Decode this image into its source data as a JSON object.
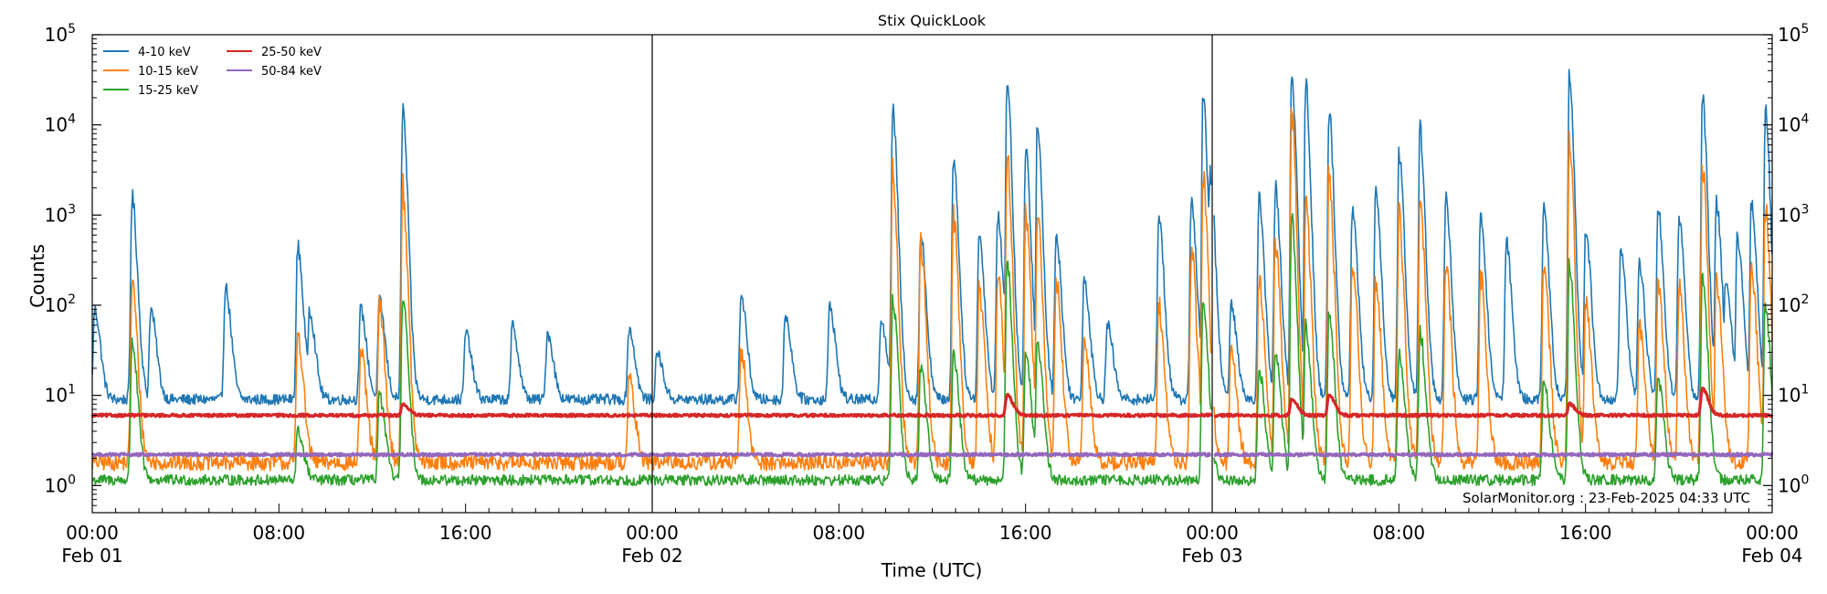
{
  "chart_data": {
    "type": "line",
    "title": "Stix QuickLook",
    "xlabel": "Time (UTC)",
    "ylabel": "Counts",
    "yscale": "log",
    "ylim": [
      0.5,
      100000
    ],
    "xlim_hours": [
      0,
      72
    ],
    "y_ticks": [
      {
        "value": 1,
        "label": "10",
        "exp": "0"
      },
      {
        "value": 10,
        "label": "10",
        "exp": "1"
      },
      {
        "value": 100,
        "label": "10",
        "exp": "2"
      },
      {
        "value": 1000,
        "label": "10",
        "exp": "3"
      },
      {
        "value": 10000,
        "label": "10",
        "exp": "4"
      },
      {
        "value": 100000,
        "label": "10",
        "exp": "5"
      }
    ],
    "x_ticks": [
      {
        "hour": 0,
        "time": "00:00",
        "date": "Feb 01"
      },
      {
        "hour": 8,
        "time": "08:00",
        "date": ""
      },
      {
        "hour": 16,
        "time": "16:00",
        "date": ""
      },
      {
        "hour": 24,
        "time": "00:00",
        "date": "Feb 02"
      },
      {
        "hour": 32,
        "time": "08:00",
        "date": ""
      },
      {
        "hour": 40,
        "time": "16:00",
        "date": ""
      },
      {
        "hour": 48,
        "time": "00:00",
        "date": "Feb 03"
      },
      {
        "hour": 56,
        "time": "08:00",
        "date": ""
      },
      {
        "hour": 64,
        "time": "16:00",
        "date": ""
      },
      {
        "hour": 72,
        "time": "00:00",
        "date": "Feb 04"
      }
    ],
    "day_boundaries_hours": [
      24,
      48
    ],
    "grid": false,
    "legend_position": "top-left",
    "legend_columns": 2,
    "series": [
      {
        "name": "4-10 keV",
        "color": "#1f77b4",
        "baseline": 9,
        "peaks": [
          [
            0.1,
            90
          ],
          [
            1.7,
            1600
          ],
          [
            2.5,
            90
          ],
          [
            5.7,
            160
          ],
          [
            8.8,
            450
          ],
          [
            9.3,
            90
          ],
          [
            11.5,
            90
          ],
          [
            12.3,
            110
          ],
          [
            13.3,
            15000
          ],
          [
            16.0,
            50
          ],
          [
            18.0,
            60
          ],
          [
            19.5,
            50
          ],
          [
            23.0,
            55
          ],
          [
            24.2,
            30
          ],
          [
            27.8,
            130
          ],
          [
            29.7,
            80
          ],
          [
            31.6,
            100
          ],
          [
            33.8,
            70
          ],
          [
            34.3,
            15000
          ],
          [
            35.5,
            600
          ],
          [
            36.9,
            4500
          ],
          [
            38.0,
            600
          ],
          [
            38.8,
            1000
          ],
          [
            39.2,
            35000
          ],
          [
            40.0,
            5000
          ],
          [
            40.5,
            9500
          ],
          [
            41.3,
            600
          ],
          [
            42.5,
            200
          ],
          [
            43.5,
            60
          ],
          [
            45.7,
            1000
          ],
          [
            47.1,
            1500
          ],
          [
            47.6,
            20000
          ],
          [
            47.9,
            3000
          ],
          [
            48.8,
            100
          ],
          [
            50.0,
            1500
          ],
          [
            50.7,
            2000
          ],
          [
            51.4,
            40000
          ],
          [
            52.0,
            30000
          ],
          [
            53.0,
            15000
          ],
          [
            54.0,
            1200
          ],
          [
            55.0,
            2000
          ],
          [
            56.0,
            5000
          ],
          [
            56.9,
            9000
          ],
          [
            58.0,
            1500
          ],
          [
            59.5,
            1000
          ],
          [
            60.6,
            500
          ],
          [
            62.2,
            1200
          ],
          [
            63.3,
            35000
          ],
          [
            64.0,
            700
          ],
          [
            65.5,
            400
          ],
          [
            66.3,
            300
          ],
          [
            67.1,
            1200
          ],
          [
            68.0,
            1000
          ],
          [
            69.0,
            22000
          ],
          [
            69.6,
            1400
          ],
          [
            70.0,
            200
          ],
          [
            70.5,
            600
          ],
          [
            71.1,
            1400
          ],
          [
            71.7,
            15000
          ]
        ]
      },
      {
        "name": "10-15 keV",
        "color": "#ff7f0e",
        "baseline": 1.8,
        "peaks": [
          [
            1.7,
            180
          ],
          [
            8.8,
            50
          ],
          [
            11.5,
            30
          ],
          [
            12.3,
            100
          ],
          [
            13.3,
            2000
          ],
          [
            23.0,
            15
          ],
          [
            27.8,
            30
          ],
          [
            34.3,
            3000
          ],
          [
            35.5,
            500
          ],
          [
            36.9,
            1000
          ],
          [
            38.0,
            150
          ],
          [
            38.8,
            200
          ],
          [
            39.2,
            5000
          ],
          [
            40.0,
            1000
          ],
          [
            40.5,
            1000
          ],
          [
            41.3,
            200
          ],
          [
            42.5,
            40
          ],
          [
            45.7,
            100
          ],
          [
            47.1,
            400
          ],
          [
            47.6,
            3000
          ],
          [
            48.8,
            30
          ],
          [
            50.0,
            200
          ],
          [
            50.7,
            500
          ],
          [
            51.4,
            15000
          ],
          [
            52.0,
            1500
          ],
          [
            53.0,
            3000
          ],
          [
            54.0,
            300
          ],
          [
            55.0,
            200
          ],
          [
            56.0,
            1000
          ],
          [
            56.9,
            1500
          ],
          [
            58.0,
            300
          ],
          [
            59.5,
            200
          ],
          [
            62.2,
            300
          ],
          [
            63.3,
            7000
          ],
          [
            64.0,
            100
          ],
          [
            66.3,
            60
          ],
          [
            67.1,
            200
          ],
          [
            68.0,
            150
          ],
          [
            69.0,
            4000
          ],
          [
            69.6,
            200
          ],
          [
            71.1,
            300
          ],
          [
            71.7,
            1200
          ]
        ]
      },
      {
        "name": "15-25 keV",
        "color": "#2ca02c",
        "baseline": 1.15,
        "peaks": [
          [
            1.7,
            40
          ],
          [
            8.8,
            4
          ],
          [
            12.3,
            10
          ],
          [
            13.3,
            130
          ],
          [
            34.3,
            120
          ],
          [
            35.5,
            20
          ],
          [
            36.9,
            30
          ],
          [
            39.2,
            300
          ],
          [
            40.0,
            30
          ],
          [
            40.5,
            40
          ],
          [
            47.6,
            100
          ],
          [
            50.0,
            20
          ],
          [
            50.7,
            30
          ],
          [
            51.4,
            1000
          ],
          [
            52.0,
            60
          ],
          [
            53.0,
            80
          ],
          [
            56.0,
            30
          ],
          [
            56.9,
            50
          ],
          [
            62.2,
            15
          ],
          [
            63.3,
            300
          ],
          [
            67.1,
            15
          ],
          [
            69.0,
            200
          ],
          [
            71.7,
            100
          ]
        ]
      },
      {
        "name": "25-50 keV",
        "color": "#d62728",
        "baseline": 6.0,
        "peaks": [
          [
            13.3,
            8
          ],
          [
            39.2,
            10
          ],
          [
            51.4,
            9
          ],
          [
            53.0,
            10
          ],
          [
            63.3,
            8
          ],
          [
            69.0,
            12
          ]
        ]
      },
      {
        "name": "50-84 keV",
        "color": "#9467bd",
        "baseline": 2.2,
        "peaks": []
      }
    ],
    "annotation": "SolarMonitor.org : 23-Feb-2025 04:33 UTC"
  }
}
